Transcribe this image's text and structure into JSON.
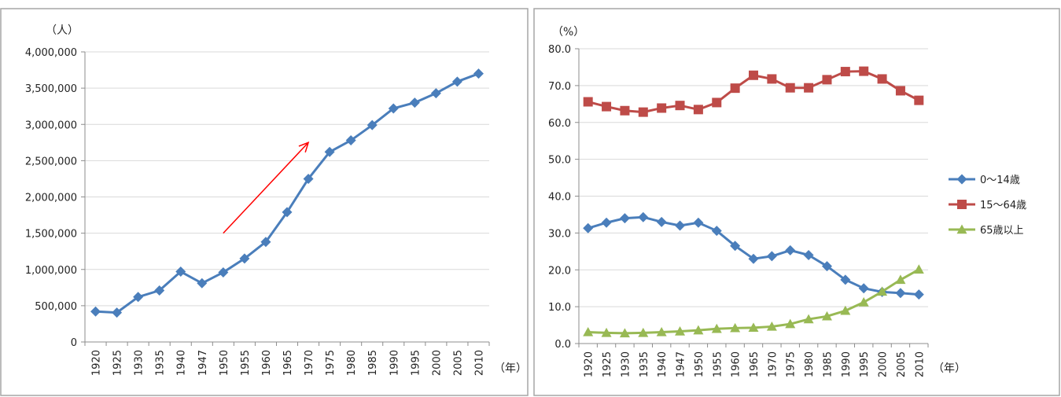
{
  "chart_data": [
    {
      "type": "line",
      "title": "",
      "y_unit": "（人）",
      "x_unit": "（年）",
      "ylim": [
        0,
        4000000
      ],
      "y_ticks": [
        "0",
        "500,000",
        "1,000,000",
        "1,500,000",
        "2,000,000",
        "2,500,000",
        "3,000,000",
        "3,500,000",
        "4,000,000"
      ],
      "y_tick_values": [
        0,
        500000,
        1000000,
        1500000,
        2000000,
        2500000,
        3000000,
        3500000,
        4000000
      ],
      "categories": [
        "1920",
        "1925",
        "1930",
        "1935",
        "1940",
        "1947",
        "1950",
        "1955",
        "1960",
        "1965",
        "1970",
        "1975",
        "1980",
        "1985",
        "1990",
        "1995",
        "2000",
        "2005",
        "2010"
      ],
      "series": [
        {
          "color": "#4a7ebb",
          "marker": "diamond",
          "values": [
            420000,
            405000,
            620000,
            710000,
            970000,
            810000,
            960000,
            1150000,
            1380000,
            1790000,
            2250000,
            2620000,
            2780000,
            2990000,
            3220000,
            3300000,
            3430000,
            3590000,
            3700000
          ]
        }
      ],
      "annotation": {
        "type": "arrow",
        "color": "#ff0000",
        "from": [
          "1950",
          1500000
        ],
        "to": [
          "1970",
          2750000
        ]
      },
      "grid": true,
      "legend": "none"
    },
    {
      "type": "line",
      "title": "",
      "y_unit": "（%）",
      "x_unit": "（年）",
      "ylim": [
        0,
        80
      ],
      "y_ticks": [
        "0.0",
        "10.0",
        "20.0",
        "30.0",
        "40.0",
        "50.0",
        "60.0",
        "70.0",
        "80.0"
      ],
      "y_tick_values": [
        0,
        10,
        20,
        30,
        40,
        50,
        60,
        70,
        80
      ],
      "categories": [
        "1920",
        "1925",
        "1930",
        "1935",
        "1940",
        "1947",
        "1950",
        "1955",
        "1960",
        "1965",
        "1970",
        "1975",
        "1980",
        "1985",
        "1990",
        "1995",
        "2000",
        "2005",
        "2010"
      ],
      "series": [
        {
          "name": "0〜14歳",
          "color": "#4a7ebb",
          "marker": "diamond",
          "values": [
            31.3,
            32.8,
            34.0,
            34.3,
            33.0,
            32.0,
            32.8,
            30.6,
            26.5,
            23.0,
            23.7,
            25.3,
            24.0,
            21.0,
            17.3,
            15.0,
            14.0,
            13.7,
            13.3
          ]
        },
        {
          "name": "15〜64歳",
          "color": "#be4b48",
          "marker": "square",
          "values": [
            65.6,
            64.3,
            63.2,
            62.8,
            63.9,
            64.6,
            63.5,
            65.4,
            69.3,
            72.8,
            71.8,
            69.4,
            69.4,
            71.6,
            73.8,
            73.9,
            71.8,
            68.6,
            66.0
          ]
        },
        {
          "name": "65歳以上",
          "color": "#98b954",
          "marker": "triangle",
          "values": [
            3.1,
            2.9,
            2.8,
            2.9,
            3.1,
            3.3,
            3.6,
            4.0,
            4.2,
            4.3,
            4.6,
            5.3,
            6.6,
            7.4,
            8.9,
            11.2,
            14.1,
            17.3,
            20.1
          ]
        }
      ],
      "grid": true,
      "legend": "right"
    }
  ]
}
